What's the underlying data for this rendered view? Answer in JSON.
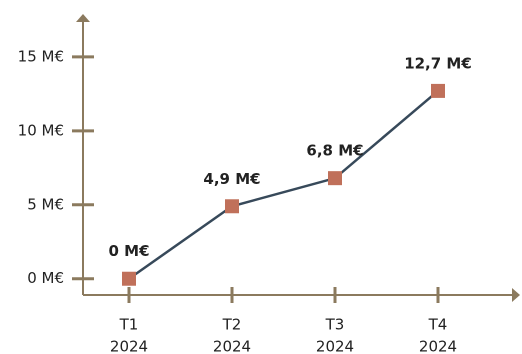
{
  "chart_data": {
    "type": "line",
    "categories": [
      [
        "T1",
        "2024"
      ],
      [
        "T2",
        "2024"
      ],
      [
        "T3",
        "2024"
      ],
      [
        "T4",
        "2024"
      ]
    ],
    "series": [
      {
        "values": [
          0,
          4.9,
          6.8,
          12.7
        ],
        "value_labels": [
          "0 M€",
          "4,9 M€",
          "6,8 M€",
          "12,7 M€"
        ],
        "color": "#37495a",
        "marker_color": "#c0705a"
      }
    ],
    "ylim": [
      -1.1,
      17.9
    ],
    "yticks": [
      {
        "value": 0,
        "label": "0 M€"
      },
      {
        "value": 5,
        "label": "5 M€"
      },
      {
        "value": 10,
        "label": "10 M€"
      },
      {
        "value": 15,
        "label": "15 M€"
      }
    ],
    "axis_color": "#8b7a5e"
  }
}
